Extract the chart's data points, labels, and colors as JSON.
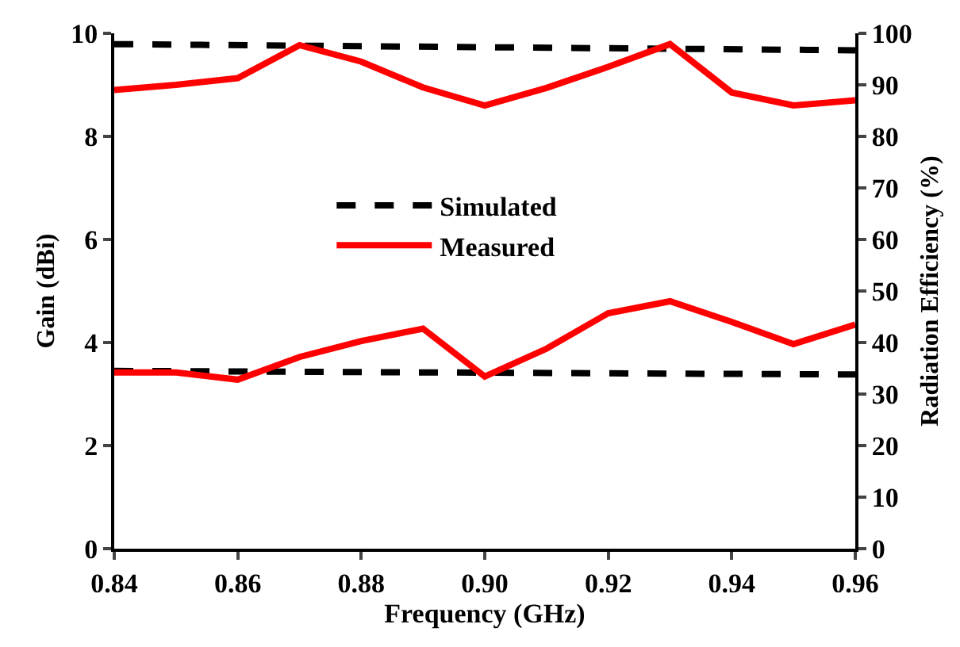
{
  "chart_data": {
    "type": "line",
    "xlabel": "Frequency (GHz)",
    "ylabel": "Gain (dBi)",
    "y2label": "Radiation Efficiency (%)",
    "xlim": [
      0.84,
      0.96
    ],
    "xticks": [
      {
        "value": 0.84,
        "label": "0.84"
      },
      {
        "value": 0.86,
        "label": "0.86"
      },
      {
        "value": 0.88,
        "label": "0.88"
      },
      {
        "value": 0.9,
        "label": "0.90"
      },
      {
        "value": 0.92,
        "label": "0.92"
      },
      {
        "value": 0.94,
        "label": "0.94"
      },
      {
        "value": 0.96,
        "label": "0.96"
      }
    ],
    "ylim": [
      0,
      10
    ],
    "yticks": [
      0,
      2,
      4,
      6,
      8,
      10
    ],
    "y2lim": [
      0,
      100
    ],
    "y2ticks": [
      0,
      10,
      20,
      30,
      40,
      50,
      60,
      70,
      80,
      90,
      100
    ],
    "legend": "top",
    "marker": "none",
    "series": [
      {
        "name": "Simulated",
        "color": "#000000",
        "line_style": "dashed",
        "x": [
          0.84,
          0.96
        ],
        "values": [
          3.45,
          3.38
        ]
      },
      {
        "name": "Measured",
        "color": "#ff0000",
        "line_style": "solid",
        "x": [
          0.84,
          0.85,
          0.86,
          0.87,
          0.88,
          0.89,
          0.9,
          0.91,
          0.92,
          0.93,
          0.94,
          0.95,
          0.96
        ],
        "values": [
          3.42,
          3.42,
          3.28,
          3.72,
          4.03,
          4.27,
          3.34,
          3.88,
          4.57,
          4.8,
          4.4,
          3.97,
          4.35
        ]
      },
      {
        "color": "#000000",
        "line_style": "dashed",
        "axis": "y2",
        "x": [
          0.84,
          0.96
        ],
        "values": [
          97.9,
          96.7
        ]
      },
      {
        "color": "#ff0000",
        "line_style": "solid",
        "axis": "y2",
        "x": [
          0.84,
          0.85,
          0.86,
          0.87,
          0.88,
          0.89,
          0.9,
          0.91,
          0.92,
          0.93,
          0.94,
          0.95,
          0.96
        ],
        "values": [
          89,
          90,
          91.3,
          97.7,
          94.5,
          89.5,
          86,
          89.4,
          93.5,
          97.9,
          88.5,
          86,
          87
        ]
      }
    ]
  }
}
